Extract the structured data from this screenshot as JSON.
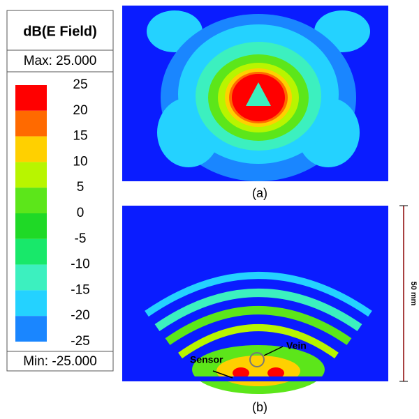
{
  "legend": {
    "title": "dB(E Field)",
    "max": "Max: 25.000",
    "min": "Min: -25.000",
    "ticks": [
      25,
      20,
      15,
      10,
      5,
      0,
      -5,
      -10,
      -15,
      -20,
      -25
    ],
    "colors": [
      "#ff0000",
      "#ff6a00",
      "#ffd000",
      "#b8f500",
      "#5ce61a",
      "#1fd926",
      "#18e86a",
      "#3cf0bf",
      "#24d2ff",
      "#1a86ff",
      "#0a1cff"
    ]
  },
  "panels": [
    {
      "label": "(a)"
    },
    {
      "label": "(b)",
      "sensor": "Sensor",
      "vein": "Vein",
      "scale": "50 mm"
    }
  ]
}
